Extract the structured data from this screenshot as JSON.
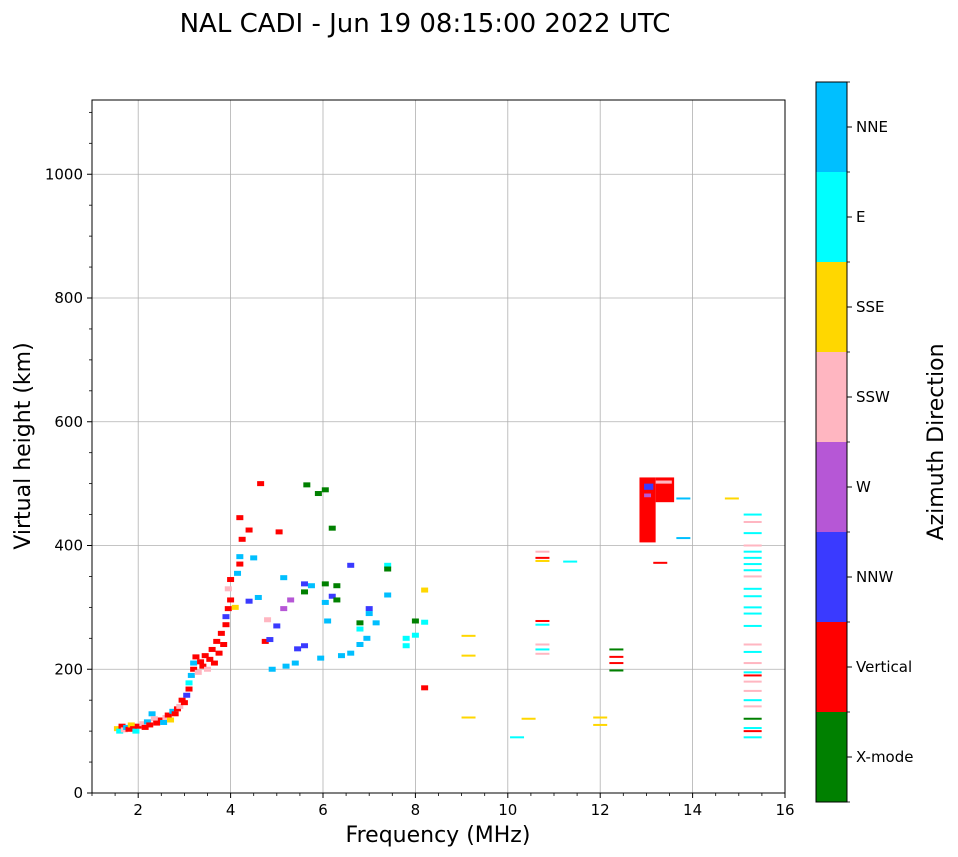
{
  "chart_data": {
    "type": "scatter",
    "title": "NAL CADI - Jun 19 08:15:00 2022 UTC",
    "xlabel": "Frequency (MHz)",
    "ylabel": "Virtual height (km)",
    "xlim": [
      1,
      16
    ],
    "ylim": [
      0,
      1120
    ],
    "xticks": [
      2,
      4,
      6,
      8,
      10,
      12,
      14,
      16
    ],
    "yticks": [
      0,
      200,
      400,
      600,
      800,
      1000
    ],
    "grid": true,
    "colorbar": {
      "label": "Azimuth Direction",
      "position": "right",
      "categories": [
        {
          "name": "X-mode",
          "color": "#008000"
        },
        {
          "name": "Vertical",
          "color": "#ff0000"
        },
        {
          "name": "NNW",
          "color": "#3a3aff"
        },
        {
          "name": "W",
          "color": "#b657d6"
        },
        {
          "name": "SSW",
          "color": "#ffb6c1"
        },
        {
          "name": "SSE",
          "color": "#ffd700"
        },
        {
          "name": "E",
          "color": "#00ffff"
        },
        {
          "name": "NNE",
          "color": "#00bfff"
        }
      ]
    },
    "points": [
      {
        "f": 1.55,
        "h": 104,
        "c": "SSE"
      },
      {
        "f": 1.6,
        "h": 100,
        "c": "E"
      },
      {
        "f": 1.65,
        "h": 108,
        "c": "Vertical"
      },
      {
        "f": 1.7,
        "h": 102,
        "c": "SSW"
      },
      {
        "f": 1.75,
        "h": 106,
        "c": "NNE"
      },
      {
        "f": 1.8,
        "h": 103,
        "c": "Vertical"
      },
      {
        "f": 1.85,
        "h": 110,
        "c": "SSE"
      },
      {
        "f": 1.9,
        "h": 104,
        "c": "Vertical"
      },
      {
        "f": 1.95,
        "h": 100,
        "c": "E"
      },
      {
        "f": 2.0,
        "h": 108,
        "c": "Vertical"
      },
      {
        "f": 2.1,
        "h": 112,
        "c": "SSW"
      },
      {
        "f": 2.15,
        "h": 106,
        "c": "Vertical"
      },
      {
        "f": 2.2,
        "h": 115,
        "c": "NNE"
      },
      {
        "f": 2.25,
        "h": 110,
        "c": "Vertical"
      },
      {
        "f": 2.3,
        "h": 128,
        "c": "NNE"
      },
      {
        "f": 2.35,
        "h": 120,
        "c": "SSW"
      },
      {
        "f": 2.4,
        "h": 113,
        "c": "Vertical"
      },
      {
        "f": 2.5,
        "h": 118,
        "c": "Vertical"
      },
      {
        "f": 2.55,
        "h": 114,
        "c": "NNE"
      },
      {
        "f": 2.6,
        "h": 122,
        "c": "SSW"
      },
      {
        "f": 2.65,
        "h": 126,
        "c": "Vertical"
      },
      {
        "f": 2.7,
        "h": 118,
        "c": "SSE"
      },
      {
        "f": 2.75,
        "h": 132,
        "c": "NNE"
      },
      {
        "f": 2.8,
        "h": 128,
        "c": "Vertical"
      },
      {
        "f": 2.85,
        "h": 136,
        "c": "Vertical"
      },
      {
        "f": 2.9,
        "h": 140,
        "c": "SSW"
      },
      {
        "f": 2.95,
        "h": 150,
        "c": "Vertical"
      },
      {
        "f": 3.0,
        "h": 146,
        "c": "Vertical"
      },
      {
        "f": 3.05,
        "h": 158,
        "c": "NNW"
      },
      {
        "f": 3.1,
        "h": 168,
        "c": "Vertical"
      },
      {
        "f": 3.1,
        "h": 178,
        "c": "E"
      },
      {
        "f": 3.15,
        "h": 190,
        "c": "NNE"
      },
      {
        "f": 3.2,
        "h": 200,
        "c": "Vertical"
      },
      {
        "f": 3.2,
        "h": 210,
        "c": "NNE"
      },
      {
        "f": 3.25,
        "h": 220,
        "c": "Vertical"
      },
      {
        "f": 3.3,
        "h": 195,
        "c": "SSW"
      },
      {
        "f": 3.35,
        "h": 212,
        "c": "Vertical"
      },
      {
        "f": 3.4,
        "h": 205,
        "c": "Vertical"
      },
      {
        "f": 3.45,
        "h": 222,
        "c": "Vertical"
      },
      {
        "f": 3.5,
        "h": 200,
        "c": "SSW"
      },
      {
        "f": 3.55,
        "h": 216,
        "c": "Vertical"
      },
      {
        "f": 3.6,
        "h": 232,
        "c": "Vertical"
      },
      {
        "f": 3.65,
        "h": 210,
        "c": "Vertical"
      },
      {
        "f": 3.7,
        "h": 245,
        "c": "Vertical"
      },
      {
        "f": 3.75,
        "h": 226,
        "c": "Vertical"
      },
      {
        "f": 3.8,
        "h": 258,
        "c": "Vertical"
      },
      {
        "f": 3.85,
        "h": 240,
        "c": "Vertical"
      },
      {
        "f": 3.9,
        "h": 272,
        "c": "Vertical"
      },
      {
        "f": 3.9,
        "h": 285,
        "c": "NNW"
      },
      {
        "f": 3.95,
        "h": 298,
        "c": "Vertical"
      },
      {
        "f": 4.0,
        "h": 312,
        "c": "Vertical"
      },
      {
        "f": 3.95,
        "h": 330,
        "c": "SSW"
      },
      {
        "f": 4.0,
        "h": 345,
        "c": "Vertical"
      },
      {
        "f": 4.1,
        "h": 300,
        "c": "SSE"
      },
      {
        "f": 4.15,
        "h": 355,
        "c": "NNE"
      },
      {
        "f": 4.2,
        "h": 370,
        "c": "Vertical"
      },
      {
        "f": 4.2,
        "h": 382,
        "c": "NNE"
      },
      {
        "f": 4.25,
        "h": 410,
        "c": "Vertical"
      },
      {
        "f": 4.2,
        "h": 445,
        "c": "Vertical"
      },
      {
        "f": 4.4,
        "h": 425,
        "c": "Vertical"
      },
      {
        "f": 4.65,
        "h": 500,
        "c": "Vertical"
      },
      {
        "f": 4.4,
        "h": 310,
        "c": "NNW"
      },
      {
        "f": 4.5,
        "h": 380,
        "c": "NNE"
      },
      {
        "f": 4.6,
        "h": 316,
        "c": "NNE"
      },
      {
        "f": 4.75,
        "h": 245,
        "c": "Vertical"
      },
      {
        "f": 4.8,
        "h": 280,
        "c": "SSW"
      },
      {
        "f": 4.85,
        "h": 248,
        "c": "NNW"
      },
      {
        "f": 4.9,
        "h": 200,
        "c": "NNE"
      },
      {
        "f": 5.0,
        "h": 270,
        "c": "NNW"
      },
      {
        "f": 5.05,
        "h": 422,
        "c": "Vertical"
      },
      {
        "f": 5.15,
        "h": 298,
        "c": "W"
      },
      {
        "f": 5.15,
        "h": 348,
        "c": "NNE"
      },
      {
        "f": 5.2,
        "h": 205,
        "c": "NNE"
      },
      {
        "f": 5.3,
        "h": 312,
        "c": "W"
      },
      {
        "f": 5.4,
        "h": 210,
        "c": "NNE"
      },
      {
        "f": 5.45,
        "h": 233,
        "c": "NNW"
      },
      {
        "f": 5.6,
        "h": 238,
        "c": "NNW"
      },
      {
        "f": 5.6,
        "h": 338,
        "c": "NNW"
      },
      {
        "f": 5.6,
        "h": 325,
        "c": "X-mode"
      },
      {
        "f": 5.65,
        "h": 498,
        "c": "X-mode"
      },
      {
        "f": 5.75,
        "h": 335,
        "c": "NNE"
      },
      {
        "f": 5.9,
        "h": 484,
        "c": "X-mode"
      },
      {
        "f": 5.95,
        "h": 218,
        "c": "NNE"
      },
      {
        "f": 6.05,
        "h": 490,
        "c": "X-mode"
      },
      {
        "f": 6.05,
        "h": 338,
        "c": "X-mode"
      },
      {
        "f": 6.05,
        "h": 308,
        "c": "NNE"
      },
      {
        "f": 6.1,
        "h": 278,
        "c": "NNE"
      },
      {
        "f": 6.2,
        "h": 428,
        "c": "X-mode"
      },
      {
        "f": 6.2,
        "h": 318,
        "c": "NNW"
      },
      {
        "f": 6.3,
        "h": 312,
        "c": "X-mode"
      },
      {
        "f": 6.3,
        "h": 335,
        "c": "X-mode"
      },
      {
        "f": 6.4,
        "h": 222,
        "c": "NNE"
      },
      {
        "f": 6.6,
        "h": 226,
        "c": "NNE"
      },
      {
        "f": 6.6,
        "h": 368,
        "c": "NNW"
      },
      {
        "f": 6.8,
        "h": 240,
        "c": "NNE"
      },
      {
        "f": 6.8,
        "h": 275,
        "c": "X-mode"
      },
      {
        "f": 6.8,
        "h": 265,
        "c": "E"
      },
      {
        "f": 6.95,
        "h": 250,
        "c": "NNE"
      },
      {
        "f": 7.0,
        "h": 298,
        "c": "NNW"
      },
      {
        "f": 7.0,
        "h": 290,
        "c": "NNE"
      },
      {
        "f": 7.15,
        "h": 275,
        "c": "NNE"
      },
      {
        "f": 7.4,
        "h": 368,
        "c": "E"
      },
      {
        "f": 7.4,
        "h": 362,
        "c": "X-mode"
      },
      {
        "f": 7.4,
        "h": 320,
        "c": "NNE"
      },
      {
        "f": 7.8,
        "h": 250,
        "c": "E"
      },
      {
        "f": 7.8,
        "h": 238,
        "c": "E"
      },
      {
        "f": 8.0,
        "h": 255,
        "c": "E"
      },
      {
        "f": 8.0,
        "h": 278,
        "c": "X-mode"
      },
      {
        "f": 8.2,
        "h": 276,
        "c": "E"
      },
      {
        "f": 8.2,
        "h": 328,
        "c": "SSE"
      },
      {
        "f": 8.2,
        "h": 170,
        "c": "Vertical"
      },
      {
        "f": 9.15,
        "h": 254,
        "c": "SSE"
      },
      {
        "f": 9.15,
        "h": 222,
        "c": "SSE"
      },
      {
        "f": 9.15,
        "h": 122,
        "c": "SSE"
      },
      {
        "f": 10.2,
        "h": 90,
        "c": "E"
      },
      {
        "f": 10.45,
        "h": 120,
        "c": "SSE"
      },
      {
        "f": 10.75,
        "h": 390,
        "c": "SSW"
      },
      {
        "f": 10.75,
        "h": 380,
        "c": "Vertical"
      },
      {
        "f": 10.75,
        "h": 375,
        "c": "SSE"
      },
      {
        "f": 10.75,
        "h": 278,
        "c": "Vertical"
      },
      {
        "f": 10.75,
        "h": 272,
        "c": "E"
      },
      {
        "f": 10.75,
        "h": 240,
        "c": "SSW"
      },
      {
        "f": 10.75,
        "h": 232,
        "c": "E"
      },
      {
        "f": 10.75,
        "h": 225,
        "c": "SSW"
      },
      {
        "f": 11.35,
        "h": 374,
        "c": "E"
      },
      {
        "f": 12.0,
        "h": 122,
        "c": "SSE"
      },
      {
        "f": 12.0,
        "h": 110,
        "c": "SSE"
      },
      {
        "f": 12.35,
        "h": 232,
        "c": "X-mode"
      },
      {
        "f": 12.35,
        "h": 220,
        "c": "Vertical"
      },
      {
        "f": 12.35,
        "h": 210,
        "c": "Vertical"
      },
      {
        "f": 12.35,
        "h": 198,
        "c": "X-mode"
      },
      {
        "f": 13.3,
        "h": 372,
        "c": "Vertical"
      },
      {
        "f": 13.8,
        "h": 476,
        "c": "NNE"
      },
      {
        "f": 13.8,
        "h": 412,
        "c": "NNE"
      },
      {
        "f": 14.85,
        "h": 476,
        "c": "SSE"
      },
      {
        "f": 15.3,
        "h": 450,
        "c": "E"
      },
      {
        "f": 15.3,
        "h": 438,
        "c": "SSW"
      },
      {
        "f": 15.3,
        "h": 420,
        "c": "E"
      },
      {
        "f": 15.3,
        "h": 400,
        "c": "SSW"
      },
      {
        "f": 15.3,
        "h": 390,
        "c": "E"
      },
      {
        "f": 15.3,
        "h": 380,
        "c": "E"
      },
      {
        "f": 15.3,
        "h": 370,
        "c": "E"
      },
      {
        "f": 15.3,
        "h": 360,
        "c": "E"
      },
      {
        "f": 15.3,
        "h": 350,
        "c": "SSW"
      },
      {
        "f": 15.3,
        "h": 330,
        "c": "E"
      },
      {
        "f": 15.3,
        "h": 318,
        "c": "E"
      },
      {
        "f": 15.3,
        "h": 300,
        "c": "E"
      },
      {
        "f": 15.3,
        "h": 290,
        "c": "E"
      },
      {
        "f": 15.3,
        "h": 270,
        "c": "E"
      },
      {
        "f": 15.3,
        "h": 240,
        "c": "SSW"
      },
      {
        "f": 15.3,
        "h": 228,
        "c": "E"
      },
      {
        "f": 15.3,
        "h": 210,
        "c": "SSW"
      },
      {
        "f": 15.3,
        "h": 195,
        "c": "E"
      },
      {
        "f": 15.3,
        "h": 190,
        "c": "Vertical"
      },
      {
        "f": 15.3,
        "h": 180,
        "c": "SSW"
      },
      {
        "f": 15.3,
        "h": 165,
        "c": "SSW"
      },
      {
        "f": 15.3,
        "h": 150,
        "c": "E"
      },
      {
        "f": 15.3,
        "h": 140,
        "c": "SSW"
      },
      {
        "f": 15.3,
        "h": 120,
        "c": "X-mode"
      },
      {
        "f": 15.3,
        "h": 105,
        "c": "E"
      },
      {
        "f": 15.3,
        "h": 100,
        "c": "Vertical"
      },
      {
        "f": 15.3,
        "h": 90,
        "c": "E"
      }
    ],
    "blocks": [
      {
        "f0": 12.85,
        "f1": 13.2,
        "h0": 405,
        "h1": 510,
        "c": "Vertical"
      },
      {
        "f0": 13.2,
        "f1": 13.6,
        "h0": 470,
        "h1": 510,
        "c": "Vertical"
      },
      {
        "f0": 12.95,
        "f1": 13.15,
        "h0": 490,
        "h1": 500,
        "c": "NNW"
      },
      {
        "f0": 12.95,
        "f1": 13.1,
        "h0": 478,
        "h1": 484,
        "c": "W"
      },
      {
        "f0": 13.2,
        "f1": 13.55,
        "h0": 500,
        "h1": 505,
        "c": "SSW"
      }
    ]
  }
}
